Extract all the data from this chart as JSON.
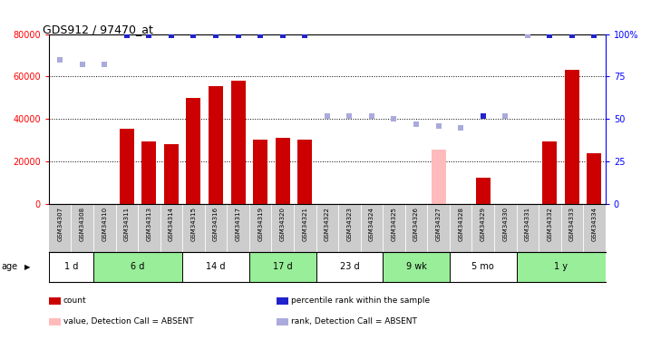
{
  "title": "GDS912 / 97470_at",
  "samples": [
    "GSM34307",
    "GSM34308",
    "GSM34310",
    "GSM34311",
    "GSM34313",
    "GSM34314",
    "GSM34315",
    "GSM34316",
    "GSM34317",
    "GSM34319",
    "GSM34320",
    "GSM34321",
    "GSM34322",
    "GSM34323",
    "GSM34324",
    "GSM34325",
    "GSM34326",
    "GSM34327",
    "GSM34328",
    "GSM34329",
    "GSM34330",
    "GSM34331",
    "GSM34332",
    "GSM34333",
    "GSM34334"
  ],
  "counts": [
    200,
    200,
    200,
    35500,
    29500,
    28000,
    50000,
    55500,
    58000,
    30500,
    31000,
    30500,
    200,
    200,
    200,
    200,
    200,
    25500,
    200,
    12500,
    200,
    200,
    29500,
    63000,
    24000
  ],
  "percentile_ranks": [
    85,
    82,
    82,
    99,
    99,
    99,
    99,
    99,
    99,
    99,
    99,
    99,
    52,
    52,
    52,
    50,
    47,
    46,
    45,
    52,
    52,
    99,
    99,
    99,
    99
  ],
  "absent_mask": [
    true,
    true,
    true,
    false,
    false,
    false,
    false,
    false,
    false,
    false,
    false,
    false,
    true,
    true,
    true,
    true,
    true,
    true,
    true,
    false,
    true,
    true,
    false,
    false,
    false
  ],
  "age_groups": [
    {
      "label": "1 d",
      "start": 0,
      "end": 1
    },
    {
      "label": "6 d",
      "start": 2,
      "end": 5
    },
    {
      "label": "14 d",
      "start": 6,
      "end": 8
    },
    {
      "label": "17 d",
      "start": 9,
      "end": 11
    },
    {
      "label": "23 d",
      "start": 12,
      "end": 14
    },
    {
      "label": "9 wk",
      "start": 15,
      "end": 17
    },
    {
      "label": "5 mo",
      "start": 18,
      "end": 20
    },
    {
      "label": "1 y",
      "start": 21,
      "end": 24
    }
  ],
  "bar_color": "#cc0000",
  "rank_present_color": "#2222cc",
  "rank_absent_color": "#aaaadd",
  "count_absent_color": "#ffbbbb",
  "ylim_left": [
    0,
    80000
  ],
  "ylim_right": [
    0,
    100
  ],
  "yticks_left": [
    0,
    20000,
    40000,
    60000,
    80000
  ],
  "yticks_right": [
    0,
    25,
    50,
    75,
    100
  ],
  "age_colors": [
    "#ffffff",
    "#99ee99"
  ],
  "xlabels_bg": "#cccccc",
  "legend_items": [
    {
      "color": "#cc0000",
      "label": "count"
    },
    {
      "color": "#2222cc",
      "label": "percentile rank within the sample"
    },
    {
      "color": "#ffbbbb",
      "label": "value, Detection Call = ABSENT"
    },
    {
      "color": "#aaaadd",
      "label": "rank, Detection Call = ABSENT"
    }
  ]
}
